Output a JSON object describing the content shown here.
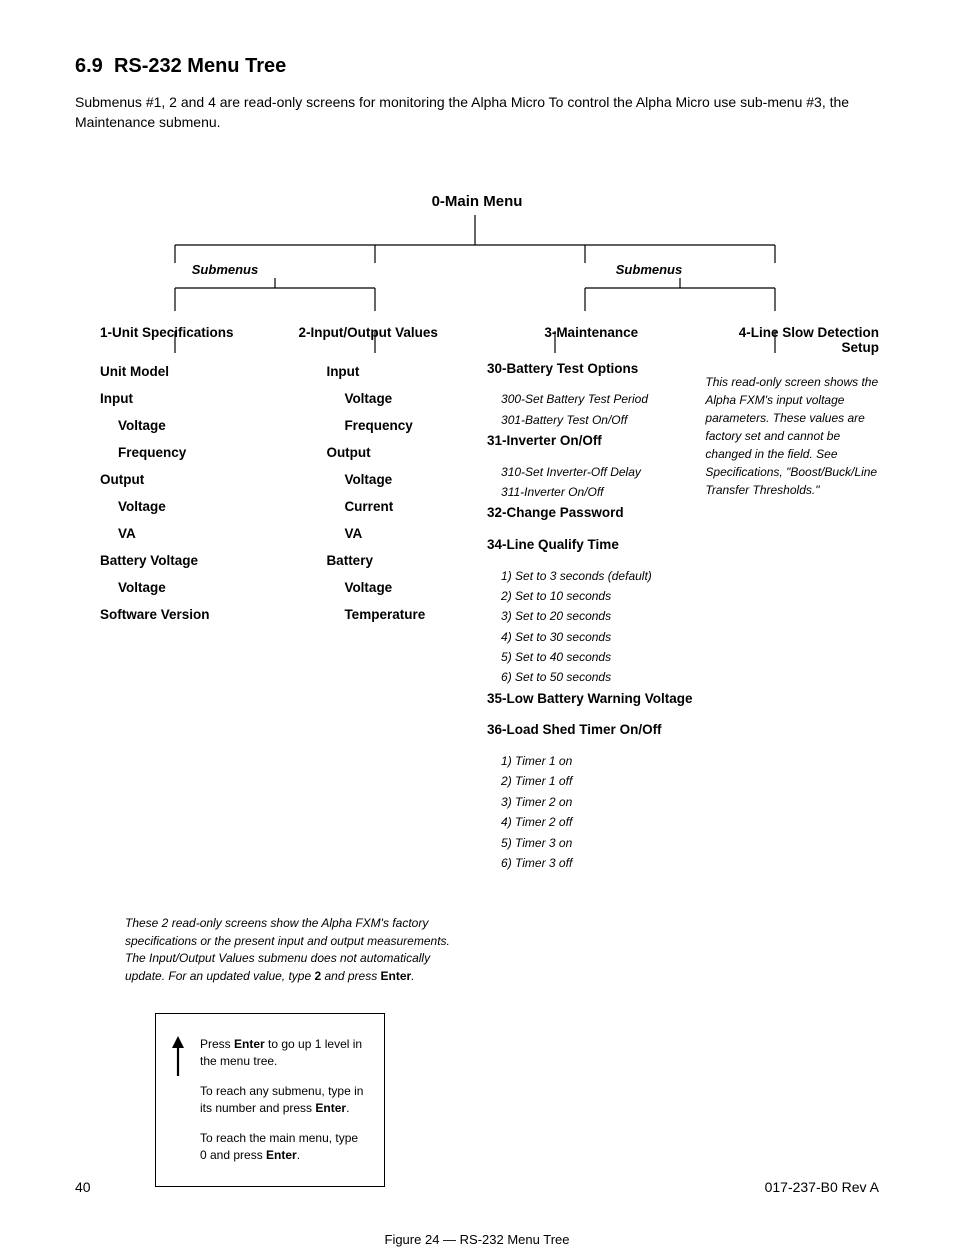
{
  "section": {
    "number": "6.9",
    "title": "RS-232 Menu Tree"
  },
  "intro": "Submenus #1, 2 and 4 are read-only screens for monitoring the Alpha Micro To control the Alpha Micro use sub-menu #3, the Maintenance submenu.",
  "mainMenu": "0-Main Menu",
  "submenusLabel": "Submenus",
  "col1": {
    "title": "1-Unit Specifications",
    "items": [
      {
        "label": "Unit Model",
        "subs": []
      },
      {
        "label": "Input",
        "subs": [
          "Voltage",
          "Frequency"
        ]
      },
      {
        "label": "Output",
        "subs": [
          "Voltage",
          "VA"
        ]
      },
      {
        "label": "Battery Voltage",
        "subs": [
          "Voltage"
        ]
      },
      {
        "label": "Software Version",
        "subs": []
      }
    ]
  },
  "col2": {
    "title": "2-Input/Output Values",
    "items": [
      {
        "label": "Input",
        "subs": [
          "Voltage",
          "Frequency"
        ]
      },
      {
        "label": "Output",
        "subs": [
          "Voltage",
          "Current",
          "VA"
        ]
      },
      {
        "label": "Battery",
        "subs": [
          "Voltage",
          "Temperature"
        ]
      }
    ]
  },
  "col3": {
    "title": "3-Maintenance",
    "items": [
      {
        "label": "30-Battery Test Options",
        "subs": [
          "300-Set Battery Test Period",
          "301-Battery Test On/Off"
        ]
      },
      {
        "label": "31-Inverter On/Off",
        "subs": [
          "310-Set Inverter-Off Delay",
          "311-Inverter On/Off"
        ]
      },
      {
        "label": "32-Change Password",
        "subs": []
      },
      {
        "label": "34-Line Qualify Time",
        "subs": [
          "1) Set to 3 seconds (default)",
          "2) Set to 10 seconds",
          "3) Set to 20 seconds",
          "4) Set to 30 seconds",
          "5) Set to 40 seconds",
          "6) Set to 50 seconds"
        ]
      },
      {
        "label": "35-Low Battery Warning Voltage",
        "subs": []
      },
      {
        "label": "36-Load Shed Timer On/Off",
        "subs": [
          "1) Timer 1 on",
          "2) Timer 1 off",
          "3) Timer 2 on",
          "4) Timer 2 off",
          "5) Timer 3 on",
          "6) Timer 3 off"
        ]
      }
    ]
  },
  "col4": {
    "title": "4-Line Slow Detection Setup",
    "note": "This read-only screen shows the Alpha FXM's input voltage parameters. These values are factory set and cannot be changed in the field. See Specifications, \"Boost/Buck/Line Transfer Thresholds.\""
  },
  "readonlyNote": {
    "prefix": "These 2 read-only screens show the Alpha FXM's factory specifications or the present input and output measurements. The Input/Output Values submenu does not automatically update. For an updated value, type ",
    "kw1": "2",
    "mid": " and press ",
    "kw2": "Enter",
    "suffix": "."
  },
  "enterBox": {
    "l1a": "Press ",
    "l1b": "Enter",
    "l1c": " to go up 1 level in the menu tree.",
    "l2a": "To reach any submenu, type in its number and press ",
    "l2b": "Enter",
    "l2c": ".",
    "l3a": "To reach the main menu, type 0 and press ",
    "l3b": "Enter",
    "l3c": "."
  },
  "figureCaption": "Figure 24  —  RS-232 Menu Tree",
  "footer": {
    "page": "40",
    "doc": "017-237-B0    Rev A"
  },
  "colors": {
    "text": "#000000",
    "bg": "#ffffff",
    "line": "#000000"
  }
}
